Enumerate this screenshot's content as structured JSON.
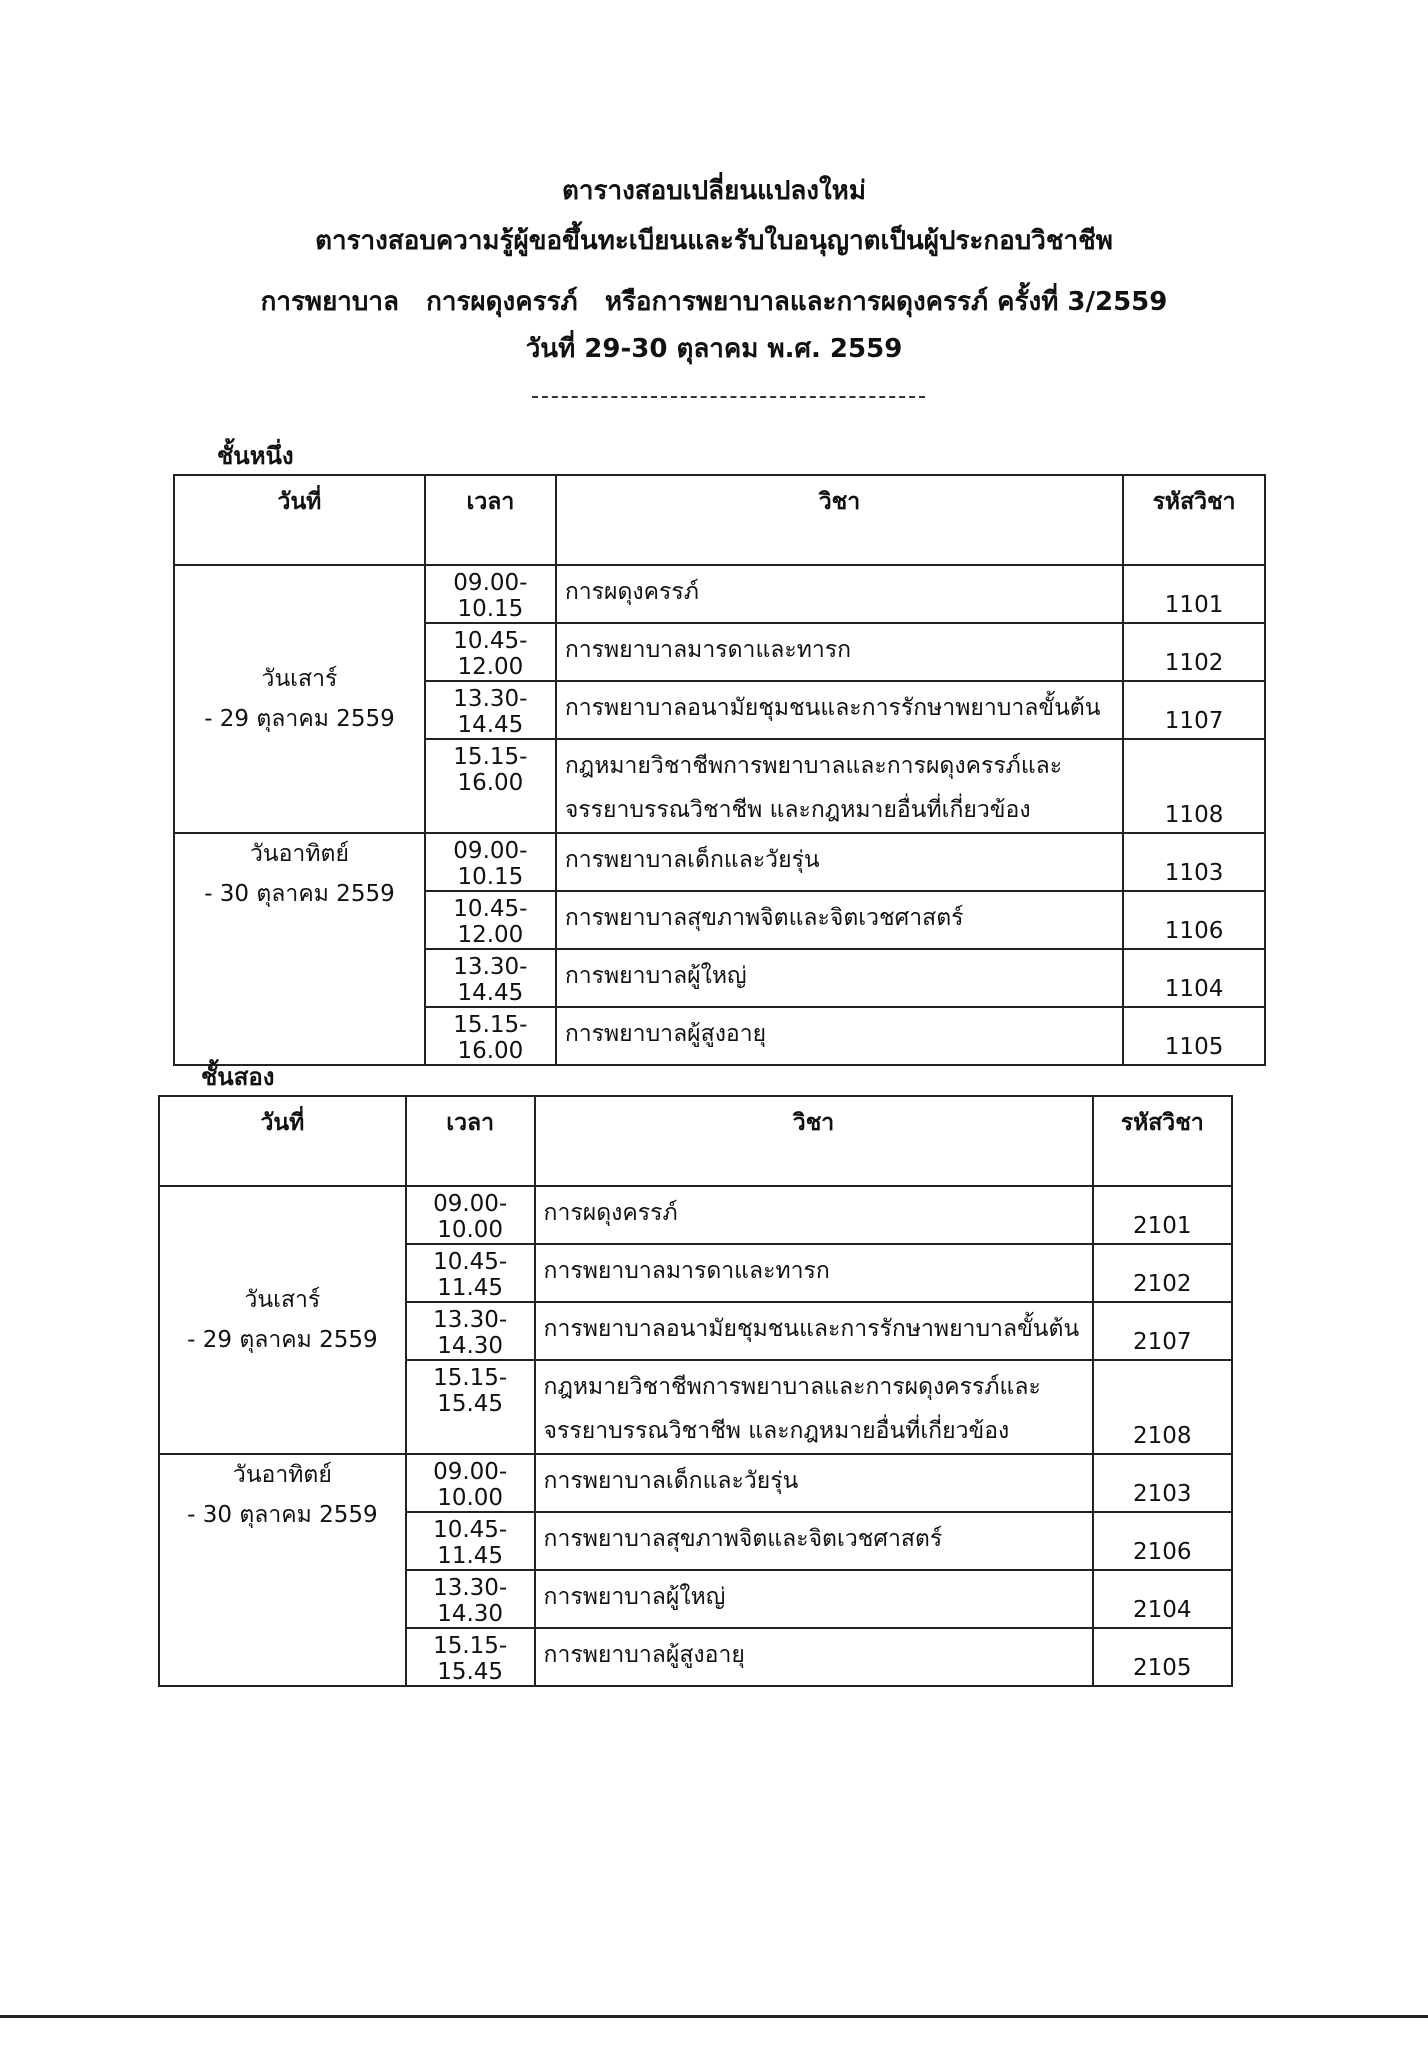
{
  "header": {
    "line1": "ตารางสอบเปลี่ยนแปลงใหม่",
    "line2": "ตารางสอบความรู้ผู้ขอขึ้นทะเบียนและรับใบอนุญาตเป็นผู้ประกอบวิชาชีพ",
    "line3": "การพยาบาล   การผดุงครรภ์   หรือการพยาบาลและการผดุงครรภ์ ครั้งที่ 3/2559",
    "line4": "วันที่  29-30 ตุลาคม พ.ศ. 2559"
  },
  "columns": {
    "date": "วันที่",
    "time": "เวลา",
    "subject": "วิชา",
    "code": "รหัสวิชา"
  },
  "sections": [
    {
      "label": "ชั้นหนึ่ง",
      "days": [
        {
          "day": "วันเสาร์",
          "date": "- 29 ตุลาคม 2559",
          "rows": [
            {
              "time": "09.00-10.15",
              "subject": "การผดุงครรภ์",
              "code": "1101"
            },
            {
              "time": "10.45-12.00",
              "subject": "การพยาบาลมารดาและทารก",
              "code": "1102"
            },
            {
              "time": "13.30-14.45",
              "subject": "การพยาบาลอนามัยชุมชนและการรักษาพยาบาลขั้นต้น",
              "code": "1107"
            },
            {
              "time": "15.15-16.00",
              "subject": "กฎหมายวิชาชีพการพยาบาลและการผดุงครรภ์และ จรรยาบรรณวิชาชีพ และกฎหมายอื่นที่เกี่ยวข้อง",
              "code": "1108"
            }
          ]
        },
        {
          "day": "วันอาทิตย์",
          "date": "- 30 ตุลาคม 2559",
          "rows": [
            {
              "time": "09.00-10.15",
              "subject": "การพยาบาลเด็กและวัยรุ่น",
              "code": "1103"
            },
            {
              "time": "10.45-12.00",
              "subject": "การพยาบาลสุขภาพจิตและจิตเวชศาสตร์",
              "code": "1106"
            },
            {
              "time": "13.30-14.45",
              "subject": "การพยาบาลผู้ใหญ่",
              "code": "1104"
            },
            {
              "time": "15.15-16.00",
              "subject": "การพยาบาลผู้สูงอายุ",
              "code": "1105"
            }
          ]
        }
      ]
    },
    {
      "label": "ชั้นสอง",
      "days": [
        {
          "day": "วันเสาร์",
          "date": "- 29 ตุลาคม 2559",
          "rows": [
            {
              "time": "09.00-10.00",
              "subject": "การผดุงครรภ์",
              "code": "2101"
            },
            {
              "time": "10.45-11.45",
              "subject": "การพยาบาลมารดาและทารก",
              "code": "2102"
            },
            {
              "time": "13.30-14.30",
              "subject": "การพยาบาลอนามัยชุมชนและการรักษาพยาบาลขั้นต้น",
              "code": "2107"
            },
            {
              "time": "15.15-15.45",
              "subject": "กฎหมายวิชาชีพการพยาบาลและการผดุงครรภ์และ จรรยาบรรณวิชาชีพ และกฎหมายอื่นที่เกี่ยวข้อง",
              "code": "2108"
            }
          ]
        },
        {
          "day": "วันอาทิตย์",
          "date": "- 30 ตุลาคม 2559",
          "rows": [
            {
              "time": "09.00-10.00",
              "subject": "การพยาบาลเด็กและวัยรุ่น",
              "code": "2103"
            },
            {
              "time": "10.45-11.45",
              "subject": "การพยาบาลสุขภาพจิตและจิตเวชศาสตร์",
              "code": "2106"
            },
            {
              "time": "13.30-14.30",
              "subject": "การพยาบาลผู้ใหญ่",
              "code": "2104"
            },
            {
              "time": "15.15-15.45",
              "subject": "การพยาบาลผู้สูงอายุ",
              "code": "2105"
            }
          ]
        }
      ]
    }
  ]
}
